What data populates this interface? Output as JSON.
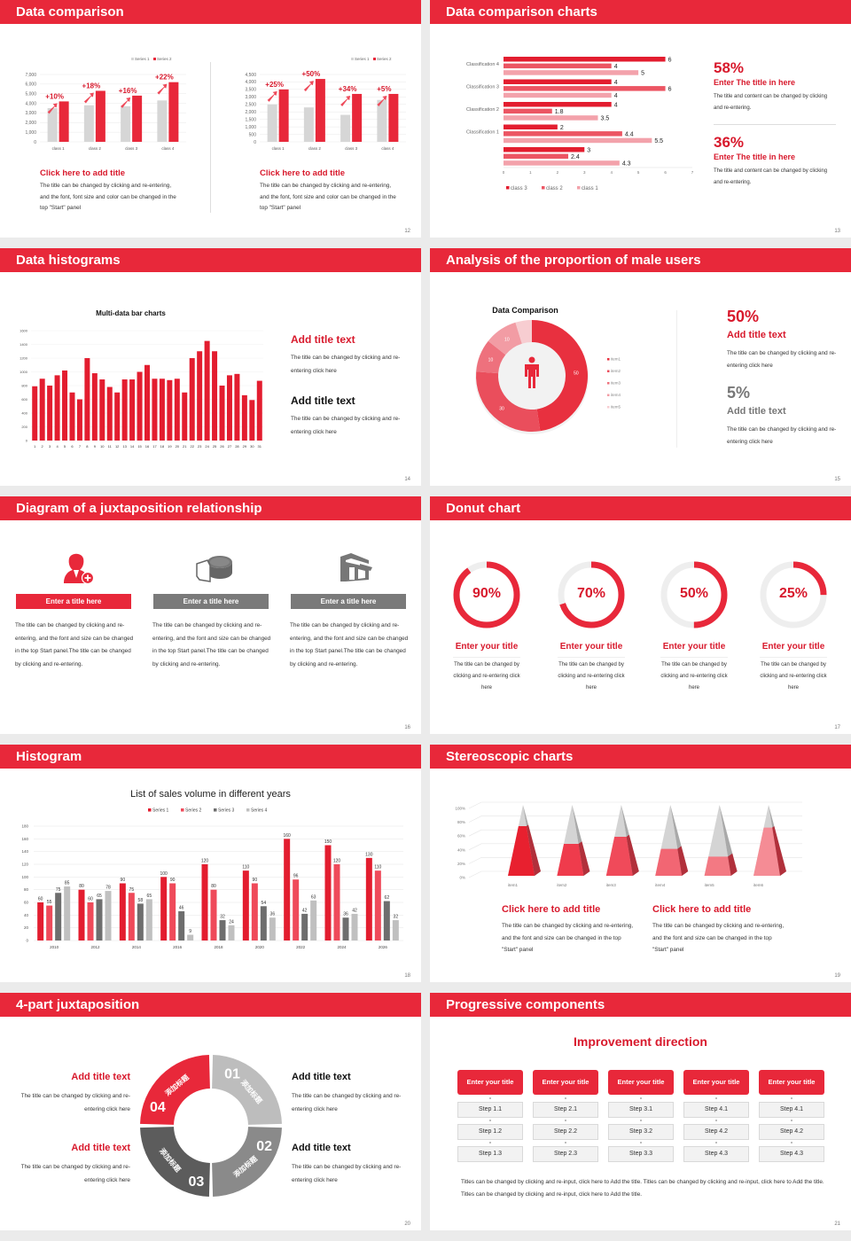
{
  "colors": {
    "accent": "#e8283a",
    "dark_red": "#d8192c",
    "gray": "#d6d6d6"
  },
  "s12": {
    "title": "Data comparison",
    "page": "12",
    "blocks": [
      {
        "title": "Click here to add title",
        "body": "The title can be changed by clicking and re-entering, and the font, font size and color can be changed in the top \"Start\" panel"
      },
      {
        "title": "Click here to add title",
        "body": "The title can be changed by clicking and re-entering, and the font, font size and color can be changed in the top \"Start\" panel"
      }
    ]
  },
  "s13": {
    "title": "Data comparison charts",
    "page": "13",
    "stats": [
      {
        "value": "58%",
        "title": "Enter The title in here",
        "body": "The title and content can be changed by clicking and re-entering."
      },
      {
        "value": "36%",
        "title": "Enter The title in here",
        "body": "The title and content can be changed by clicking and re-entering."
      }
    ]
  },
  "s14": {
    "title": "Data histograms",
    "page": "14",
    "chart_title": "Multi-data bar charts",
    "blocks": [
      {
        "title": "Add title text",
        "body": "The title can be changed by clicking and re-entering click here"
      },
      {
        "title": "Add title text",
        "body": "The title can be changed by clicking and re-entering click here"
      }
    ]
  },
  "s15": {
    "title": "Analysis of the proportion of male users",
    "page": "15",
    "chart_title": "Data Comparison",
    "stats": [
      {
        "value": "50%",
        "title": "Add title text",
        "body": "The title can be changed by clicking and re-entering click here"
      },
      {
        "value": "5%",
        "title": "Add title text",
        "body": "The title can be changed by clicking and re-entering click here"
      }
    ]
  },
  "s16": {
    "title": "Diagram of a juxtaposition relationship",
    "page": "16",
    "columns": [
      {
        "label": "Enter a title here",
        "icon": "user-add-icon",
        "body": "The title can be changed by clicking and re-entering, and the font and size can be changed in the top Start panel.The title can be changed by clicking and re-entering."
      },
      {
        "label": "Enter a title here",
        "icon": "pie-chart-icon",
        "body": "The title can be changed by clicking and re-entering, and the font and size can be changed in the top Start panel.The title can be changed by clicking and re-entering."
      },
      {
        "label": "Enter a title here",
        "icon": "building-icon",
        "body": "The title can be changed by clicking and re-entering, and the font and size can be changed in the top Start panel.The title can be changed by clicking and re-entering."
      }
    ]
  },
  "s17": {
    "title": "Donut chart",
    "page": "17",
    "rings": [
      {
        "value": 90,
        "label": "90%",
        "title": "Enter your title",
        "body": "The title can be changed by clicking and re-entering click here"
      },
      {
        "value": 70,
        "label": "70%",
        "title": "Enter your title",
        "body": "The title can be changed by clicking and re-entering click here"
      },
      {
        "value": 50,
        "label": "50%",
        "title": "Enter your title",
        "body": "The title can be changed by clicking and re-entering click here"
      },
      {
        "value": 25,
        "label": "25%",
        "title": "Enter your title",
        "body": "The title can be changed by clicking and re-entering click here"
      }
    ]
  },
  "s18": {
    "title": "Histogram",
    "page": "18"
  },
  "s19": {
    "title": "Stereoscopic charts",
    "page": "19",
    "blocks": [
      {
        "title": "Click here to add title",
        "body": "The title can be changed by clicking and re-entering, and the font and size can be changed in the top \"Start\" panel"
      },
      {
        "title": "Click here to add title",
        "body": "The title can be changed by clicking and re-entering, and the font and size can be changed in the top \"Start\" panel"
      }
    ]
  },
  "s20": {
    "title": "4-part juxtaposition",
    "page": "20",
    "segments": [
      {
        "num": "01",
        "label": "添加标题"
      },
      {
        "num": "02",
        "label": "添加标题"
      },
      {
        "num": "03",
        "label": "添加标题"
      },
      {
        "num": "04",
        "label": "添加标题"
      }
    ],
    "blocks": [
      {
        "title": "Add title text",
        "body": "The title can be changed by clicking and re-entering click here"
      },
      {
        "title": "Add title text",
        "body": "The title can be changed by clicking and re-entering click here"
      },
      {
        "title": "Add title text",
        "body": "The title can be changed by clicking and re-entering click here"
      },
      {
        "title": "Add title text",
        "body": "The title can be changed by clicking and re-entering click here"
      }
    ]
  },
  "s21": {
    "title": "Progressive components",
    "page": "21",
    "heading": "Improvement direction",
    "columns": [
      {
        "title": "Enter your title",
        "steps": [
          "Step 1.1",
          "Step 1.2",
          "Step 1.3"
        ]
      },
      {
        "title": "Enter your title",
        "steps": [
          "Step 2.1",
          "Step 2.2",
          "Step 2.3"
        ]
      },
      {
        "title": "Enter your title",
        "steps": [
          "Step 3.1",
          "Step 3.2",
          "Step 3.3"
        ]
      },
      {
        "title": "Enter your title",
        "steps": [
          "Step 4.1",
          "Step 4.2",
          "Step 4.3"
        ]
      },
      {
        "title": "Enter your title",
        "steps": [
          "Step 4.1",
          "Step 4.2",
          "Step 4.3"
        ]
      }
    ],
    "paragraph": "Titles can be changed by clicking and re-input, click here to Add the title. Titles can be changed by clicking and re-input, click here to Add the title. Titles can be changed by clicking and re-input, click here to Add the title."
  },
  "chart_data": [
    {
      "type": "bar",
      "title": "",
      "categories": [
        "class 1",
        "class 2",
        "class 3",
        "class 4"
      ],
      "ylim": [
        0,
        7000
      ],
      "ystep": 1000,
      "series": [
        {
          "name": "Series 1",
          "values": [
            3500,
            3800,
            3700,
            4300
          ]
        },
        {
          "name": "Series 2",
          "values": [
            4200,
            5300,
            4800,
            6200
          ]
        }
      ],
      "annotations": [
        "+10%",
        "+18%",
        "+16%",
        "+22%"
      ],
      "legend": "top-right"
    },
    {
      "type": "bar",
      "title": "",
      "categories": [
        "class 1",
        "class 2",
        "class 3",
        "class 4"
      ],
      "ylim": [
        0,
        4500
      ],
      "ystep": 500,
      "series": [
        {
          "name": "Series 1",
          "values": [
            2500,
            2300,
            1800,
            2800
          ]
        },
        {
          "name": "Series 2",
          "values": [
            3500,
            4200,
            3200,
            3200
          ]
        }
      ],
      "annotations": [
        "+25%",
        "+50%",
        "+34%",
        "+5%"
      ],
      "legend": "top-right"
    },
    {
      "type": "bar",
      "orientation": "horizontal",
      "categories": [
        "Classification 4",
        "Classification 3",
        "Classification 2",
        "Classification 1",
        ""
      ],
      "xlim": [
        0,
        7
      ],
      "xticks": [
        "0",
        "1",
        "2",
        "3",
        "4",
        "5",
        "6",
        "7"
      ],
      "series": [
        {
          "name": "class 3",
          "values": [
            6,
            4,
            4,
            2,
            3
          ]
        },
        {
          "name": "class 2",
          "values": [
            4,
            6,
            1.8,
            4.4,
            2.4
          ]
        },
        {
          "name": "class 1",
          "values": [
            5,
            4,
            3.5,
            5.5,
            4.3
          ]
        }
      ],
      "legend": "bottom"
    },
    {
      "type": "bar",
      "title": "Multi-data bar charts",
      "categories": [
        "1",
        "2",
        "3",
        "4",
        "5",
        "6",
        "7",
        "8",
        "9",
        "10",
        "11",
        "12",
        "13",
        "14",
        "15",
        "16",
        "17",
        "18",
        "19",
        "20",
        "21",
        "22",
        "23",
        "24",
        "25",
        "26",
        "27",
        "28",
        "29",
        "30",
        "31"
      ],
      "values": [
        790,
        900,
        800,
        950,
        1020,
        700,
        600,
        1200,
        980,
        890,
        780,
        700,
        890,
        890,
        1000,
        1100,
        900,
        900,
        880,
        900,
        700,
        1200,
        1300,
        1450,
        1300,
        800,
        950,
        970,
        660,
        590,
        870
      ],
      "ylim": [
        0,
        1600
      ],
      "ystep": 200
    },
    {
      "type": "pie",
      "title": "Data Comparison",
      "labels": [
        "item1",
        "item2",
        "item3",
        "item4",
        "item5"
      ],
      "values": [
        50,
        30,
        10,
        10,
        5
      ],
      "legend": "right"
    },
    {
      "type": "bar",
      "title": "List of sales volume in different years",
      "categories": [
        "2010",
        "2012",
        "2014",
        "2016",
        "2018",
        "2020",
        "2022",
        "2024",
        "2026"
      ],
      "ylim": [
        0,
        180
      ],
      "ystep": 20,
      "legend": "top",
      "series": [
        {
          "name": "Series 1",
          "values": [
            60,
            80,
            90,
            100,
            120,
            110,
            160,
            150,
            130
          ]
        },
        {
          "name": "Series 2",
          "values": [
            55,
            60,
            75,
            90,
            80,
            90,
            96,
            120,
            110
          ]
        },
        {
          "name": "Series 3",
          "values": [
            75,
            65,
            58,
            46,
            32,
            54,
            42,
            36,
            62
          ]
        },
        {
          "name": "Series 4",
          "values": [
            85,
            78,
            65,
            9,
            24,
            36,
            63,
            42,
            32
          ]
        }
      ]
    },
    {
      "type": "bar",
      "subtype": "3d-pyramid",
      "categories": [
        "item1",
        "item2",
        "item3",
        "item4",
        "item5",
        "item6"
      ],
      "values": [
        70,
        45,
        55,
        38,
        27,
        68
      ],
      "ylim": [
        0,
        100
      ],
      "yticks": [
        "0%",
        "20%",
        "40%",
        "60%",
        "80%",
        "100%"
      ]
    }
  ]
}
